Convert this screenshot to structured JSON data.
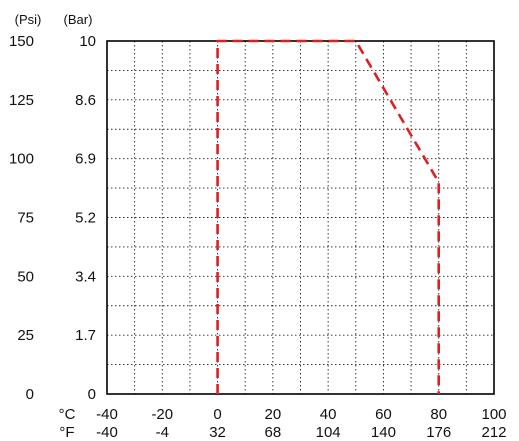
{
  "chart_data": {
    "type": "line",
    "title": "",
    "xlabel": "",
    "ylabel": "",
    "xlim": [
      -40,
      100
    ],
    "ylim": [
      0,
      150
    ],
    "grid": true,
    "y_axis_primary": {
      "unit": "(Psi)",
      "tick_values": [
        0,
        25,
        50,
        75,
        100,
        125,
        150
      ],
      "tick_labels": [
        "0",
        "25",
        "50",
        "75",
        "100",
        "125",
        "150"
      ]
    },
    "y_axis_secondary": {
      "unit": "(Bar)",
      "tick_values": [
        0,
        25,
        50,
        75,
        100,
        125,
        150
      ],
      "tick_labels": [
        "0",
        "1.7",
        "3.4",
        "5.2",
        "6.9",
        "8.6",
        "10"
      ]
    },
    "x_axis_primary": {
      "unit": "°C",
      "tick_values": [
        -40,
        -20,
        0,
        20,
        40,
        60,
        80,
        100
      ],
      "tick_labels": [
        "-40",
        "-20",
        "0",
        "20",
        "40",
        "60",
        "80",
        "100"
      ]
    },
    "x_axis_secondary": {
      "unit": "°F",
      "tick_values": [
        -40,
        -20,
        0,
        20,
        40,
        60,
        80,
        100
      ],
      "tick_labels": [
        "-40",
        "-4",
        "32",
        "68",
        "104",
        "140",
        "176",
        "212"
      ]
    },
    "minor_x_grid": [
      -30,
      -10,
      10,
      30,
      50,
      70,
      90
    ],
    "minor_y_grid": [
      12.5,
      37.5,
      62.5,
      87.5,
      112.5,
      137.5
    ],
    "series": [
      {
        "color": "#e02020",
        "style": "dashed",
        "x": [
          0,
          0,
          50,
          80,
          80
        ],
        "y": [
          0,
          150,
          150,
          90,
          0
        ]
      }
    ]
  }
}
